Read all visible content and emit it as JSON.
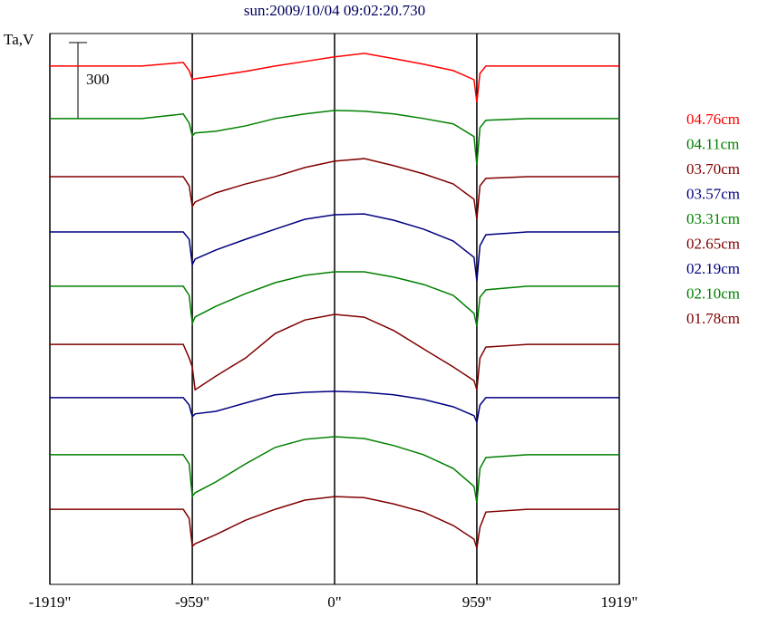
{
  "chart_data": {
    "type": "line",
    "title": "sun:2009/10/04 09:02:20.730",
    "y_label": "Ta,V",
    "scale_bar": 300,
    "x": [
      -1919,
      -1300,
      -1020,
      -980,
      -959,
      -940,
      -800,
      -600,
      -400,
      -200,
      0,
      200,
      400,
      600,
      800,
      940,
      959,
      980,
      1020,
      1300,
      1919
    ],
    "xlim": [
      -1919,
      1919
    ],
    "xticks": [
      {
        "value": -1919,
        "label": "-1919\""
      },
      {
        "value": -959,
        "label": "-959\""
      },
      {
        "value": 0,
        "label": "0\""
      },
      {
        "value": 959,
        "label": "959\""
      },
      {
        "value": 1919,
        "label": "1919\""
      }
    ],
    "ylim": [
      0,
      2171
    ],
    "grid": true,
    "series": [
      {
        "name": "04.76cm",
        "color": "#ff0000",
        "values": [
          2043,
          2043,
          2057,
          2025,
          1989,
          1993,
          2004,
          2022,
          2043,
          2061,
          2079,
          2093,
          2072,
          2050,
          2025,
          1989,
          1900,
          2014,
          2043,
          2043,
          2043
        ]
      },
      {
        "name": "04.11cm",
        "color": "#008000",
        "values": [
          1836,
          1836,
          1854,
          1818,
          1768,
          1779,
          1786,
          1807,
          1836,
          1854,
          1868,
          1865,
          1854,
          1836,
          1815,
          1765,
          1654,
          1800,
          1829,
          1836,
          1836
        ]
      },
      {
        "name": "03.70cm",
        "color": "#800000",
        "values": [
          1607,
          1607,
          1607,
          1571,
          1489,
          1507,
          1543,
          1578,
          1607,
          1643,
          1668,
          1678,
          1650,
          1618,
          1578,
          1518,
          1439,
          1571,
          1600,
          1607,
          1607
        ]
      },
      {
        "name": "03.57cm",
        "color": "#000080",
        "values": [
          1389,
          1389,
          1389,
          1360,
          1260,
          1282,
          1318,
          1360,
          1400,
          1439,
          1457,
          1460,
          1435,
          1400,
          1353,
          1289,
          1196,
          1335,
          1378,
          1389,
          1389
        ]
      },
      {
        "name": "03.31cm",
        "color": "#008000",
        "values": [
          1175,
          1175,
          1175,
          1139,
          1029,
          1054,
          1096,
          1146,
          1189,
          1218,
          1232,
          1232,
          1211,
          1182,
          1139,
          1068,
          1018,
          1132,
          1161,
          1175,
          1175
        ]
      },
      {
        "name": "02.65cm",
        "color": "#800000",
        "values": [
          946,
          946,
          946,
          892,
          857,
          767,
          821,
          892,
          989,
          1042,
          1064,
          1053,
          1000,
          928,
          857,
          803,
          767,
          892,
          935,
          946,
          946
        ]
      },
      {
        "name": "02.19cm",
        "color": "#000080",
        "values": [
          736,
          736,
          736,
          707,
          661,
          672,
          682,
          715,
          747,
          757,
          761,
          757,
          747,
          729,
          700,
          665,
          639,
          707,
          736,
          736,
          736
        ]
      },
      {
        "name": "02.10cm",
        "color": "#008000",
        "values": [
          511,
          511,
          511,
          475,
          347,
          361,
          404,
          475,
          540,
          572,
          582,
          575,
          547,
          511,
          457,
          386,
          322,
          457,
          500,
          511,
          511
        ]
      },
      {
        "name": "01.78cm",
        "color": "#800000",
        "values": [
          296,
          296,
          296,
          260,
          150,
          160,
          196,
          253,
          296,
          332,
          346,
          342,
          317,
          285,
          232,
          178,
          143,
          225,
          285,
          296,
          296
        ]
      }
    ]
  }
}
